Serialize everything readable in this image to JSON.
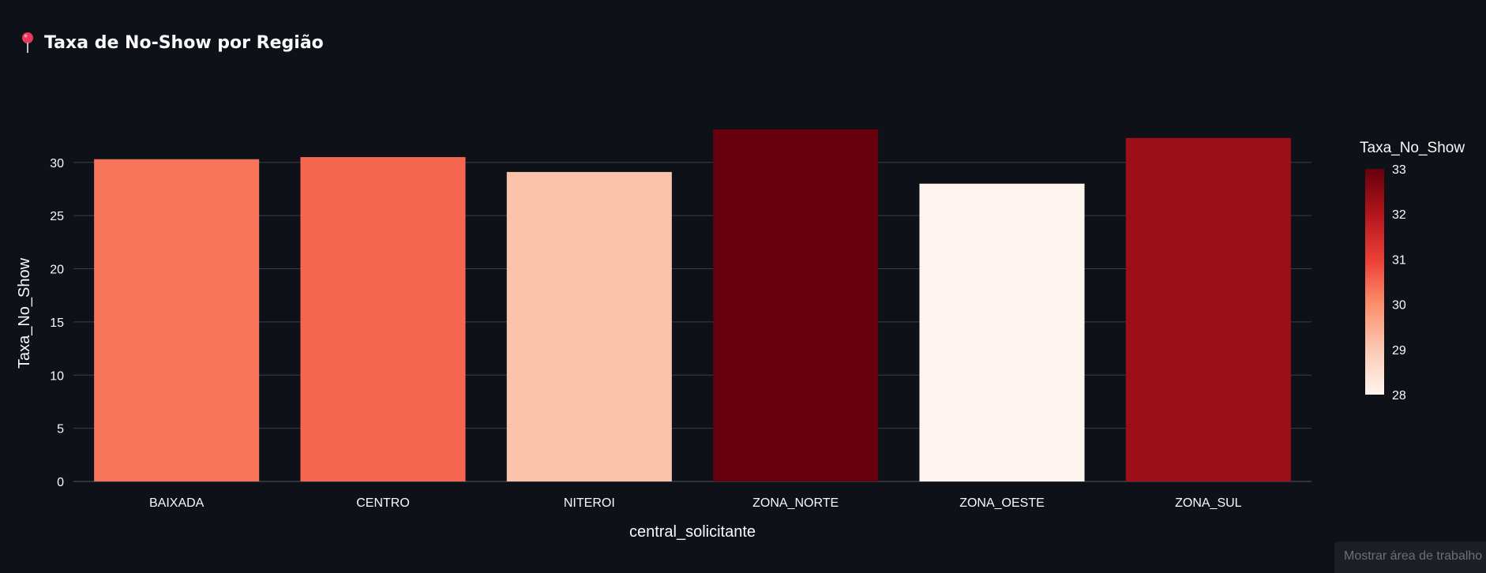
{
  "header": {
    "icon": "pushpin-icon",
    "title": "Taxa de No-Show por Região"
  },
  "chart_data": {
    "type": "bar",
    "categories": [
      "BAIXADA",
      "CENTRO",
      "NITEROI",
      "ZONA_NORTE",
      "ZONA_OESTE",
      "ZONA_SUL"
    ],
    "values": [
      30.3,
      30.5,
      29.1,
      33.1,
      28.0,
      32.3
    ],
    "xlabel": "central_solicitante",
    "ylabel": "Taxa_No_Show",
    "ylim": [
      0,
      33.1
    ],
    "yticks": [
      0,
      5,
      10,
      15,
      20,
      25,
      30
    ],
    "grid": true,
    "colorscale": "Reds",
    "colorbar": {
      "title": "Taxa_No_Show",
      "range": [
        28,
        33
      ],
      "ticks": [
        28,
        29,
        30,
        31,
        32,
        33
      ],
      "placement": "right"
    },
    "colors": {
      "background": "#0e1117",
      "grid": "#3a3f4b",
      "text": "#fafafa"
    }
  },
  "toast": {
    "text": "Mostrar área de trabalho"
  }
}
